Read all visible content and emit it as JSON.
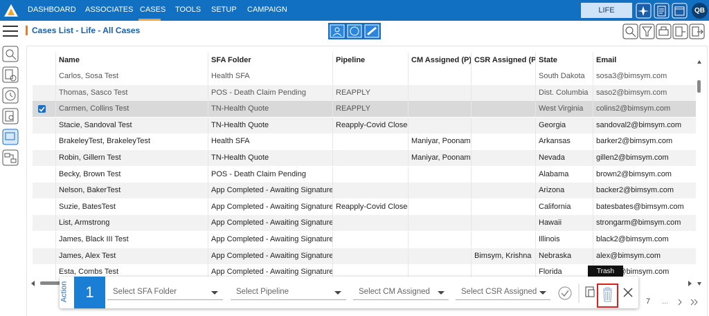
{
  "nav": {
    "items": [
      "DASHBOARD",
      "ASSOCIATES",
      "CASES",
      "TOOLS",
      "SETUP",
      "CAMPAIGN"
    ],
    "plan": "LIFE",
    "avatar": "QB"
  },
  "page": {
    "title": "Cases List - Life - All Cases"
  },
  "table": {
    "columns": [
      "Name",
      "SFA Folder",
      "Pipeline",
      "CM Assigned (P)",
      "CSR Assigned (P)",
      "State",
      "Email"
    ],
    "checked": [
      2
    ],
    "rows": [
      [
        "Carlos, Sosa Test",
        "Health SFA",
        null,
        null,
        null,
        "South Dakota",
        "sosa3@bimsym.com"
      ],
      [
        "Thomas, Sasco Test",
        "POS - Death Claim Pending",
        "REAPPLY",
        null,
        null,
        "Dist. Columbia",
        "saso2@bimsym.com"
      ],
      [
        "Carmen, Collins Test",
        "TN-Health Quote",
        "REAPPLY",
        null,
        null,
        "West Virginia",
        "colins2@bimsym.com"
      ],
      [
        "Stacie, Sandoval Test",
        "TN-Health Quote",
        "Reapply-Covid Closed",
        null,
        null,
        "Georgia",
        "sandoval2@bimsym.com"
      ],
      [
        "BrakeleyTest, BrakeleyTest",
        "Health SFA",
        null,
        "Maniyar, Poonam",
        null,
        "Arkansas",
        "barker2@bimsym.com"
      ],
      [
        "Robin, Gillern Test",
        "TN-Health Quote",
        null,
        "Maniyar, Poonam",
        null,
        "Nevada",
        "gillen2@bimsym.com"
      ],
      [
        "Becky, Brown Test",
        "POS - Death Claim Pending",
        null,
        null,
        null,
        "Alabama",
        "brown2@bimsym.com"
      ],
      [
        "Nelson, BakerTest",
        "App Completed - Awaiting Signature",
        null,
        null,
        null,
        "Arizona",
        "backer2@bimsym.com"
      ],
      [
        "Suzie, BatesTest",
        "App Completed - Awaiting Signature",
        "Reapply-Covid Closed",
        null,
        null,
        "California",
        "batesbates@bimsym.com"
      ],
      [
        "List, Armstrong",
        "App Completed - Awaiting Signature",
        null,
        null,
        null,
        "Hawaii",
        "strongarm@bimsym.com"
      ],
      [
        "James, Black III Test",
        "App Completed - Awaiting Signature",
        null,
        null,
        null,
        "Illinois",
        "black2@bimsym.com"
      ],
      [
        "James, Alex Test",
        "App Completed - Awaiting Signature",
        null,
        null,
        "Bimsym, Krishna",
        "Nebraska",
        "alex@bimsym.com"
      ],
      [
        "Esta, Combs Test",
        "App Completed - Awaiting Signature",
        null,
        null,
        null,
        "Florida",
        "combs@bimsym.com"
      ]
    ]
  },
  "action": {
    "label": "Action",
    "count": 1,
    "selects": [
      "Select SFA Folder",
      "Select Pipeline",
      "Select CM Assigned",
      "Select CSR Assigned"
    ],
    "tooltip": "Trash"
  },
  "pagination": {
    "current": 7,
    "ellipsis": "..."
  }
}
